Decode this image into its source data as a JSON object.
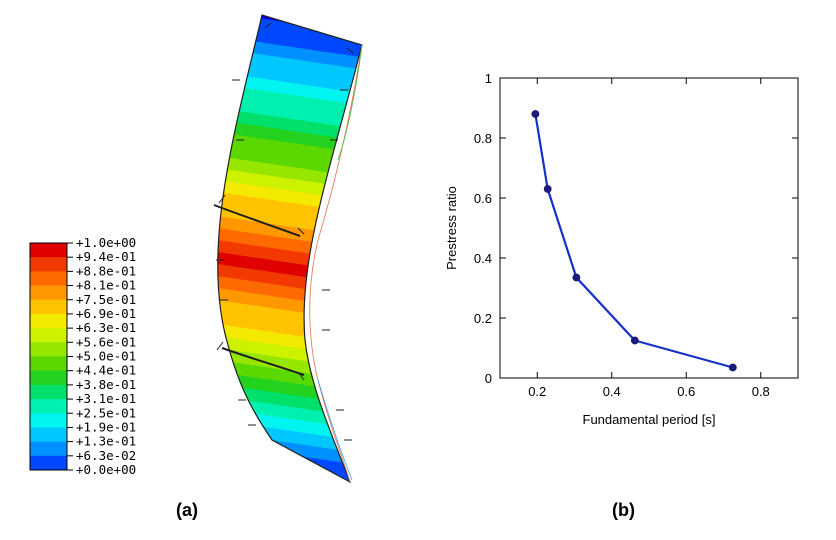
{
  "panel_a": {
    "caption": "(a)",
    "legend": [
      {
        "label": "+1.0e+00",
        "color": "#e00000"
      },
      {
        "label": "+9.4e-01",
        "color": "#f23a00"
      },
      {
        "label": "+8.8e-01",
        "color": "#ff6a00"
      },
      {
        "label": "+8.1e-01",
        "color": "#ff9800"
      },
      {
        "label": "+7.5e-01",
        "color": "#ffc300"
      },
      {
        "label": "+6.9e-01",
        "color": "#f4e900"
      },
      {
        "label": "+6.3e-01",
        "color": "#cdf200"
      },
      {
        "label": "+5.6e-01",
        "color": "#97e600"
      },
      {
        "label": "+5.0e-01",
        "color": "#5ad800"
      },
      {
        "label": "+4.4e-01",
        "color": "#22d21f"
      },
      {
        "label": "+3.8e-01",
        "color": "#00e06a"
      },
      {
        "label": "+3.1e-01",
        "color": "#00f0b0"
      },
      {
        "label": "+2.5e-01",
        "color": "#00f4f0"
      },
      {
        "label": "+1.9e-01",
        "color": "#00c8ff"
      },
      {
        "label": "+1.3e-01",
        "color": "#0090ff"
      },
      {
        "label": "+6.3e-02",
        "color": "#0048ff"
      },
      {
        "label": "+0.0e+00",
        "color": "#0000e8"
      }
    ]
  },
  "panel_b": {
    "caption": "(b)",
    "chart_data": {
      "type": "line",
      "xlabel": "Fundamental period  [s]",
      "ylabel": "Prestress ratio",
      "xlim": [
        0.1,
        0.9
      ],
      "ylim": [
        0,
        1
      ],
      "xticks": [
        "0.2",
        "0.4",
        "0.6",
        "0.8"
      ],
      "yticks": [
        "0",
        "0.2",
        "0.4",
        "0.6",
        "0.8",
        "1"
      ],
      "series": [
        {
          "x": [
            0.195,
            0.228,
            0.305,
            0.462,
            0.725
          ],
          "y": [
            0.88,
            0.63,
            0.335,
            0.125,
            0.035
          ],
          "color": "#1530c8"
        }
      ]
    }
  }
}
